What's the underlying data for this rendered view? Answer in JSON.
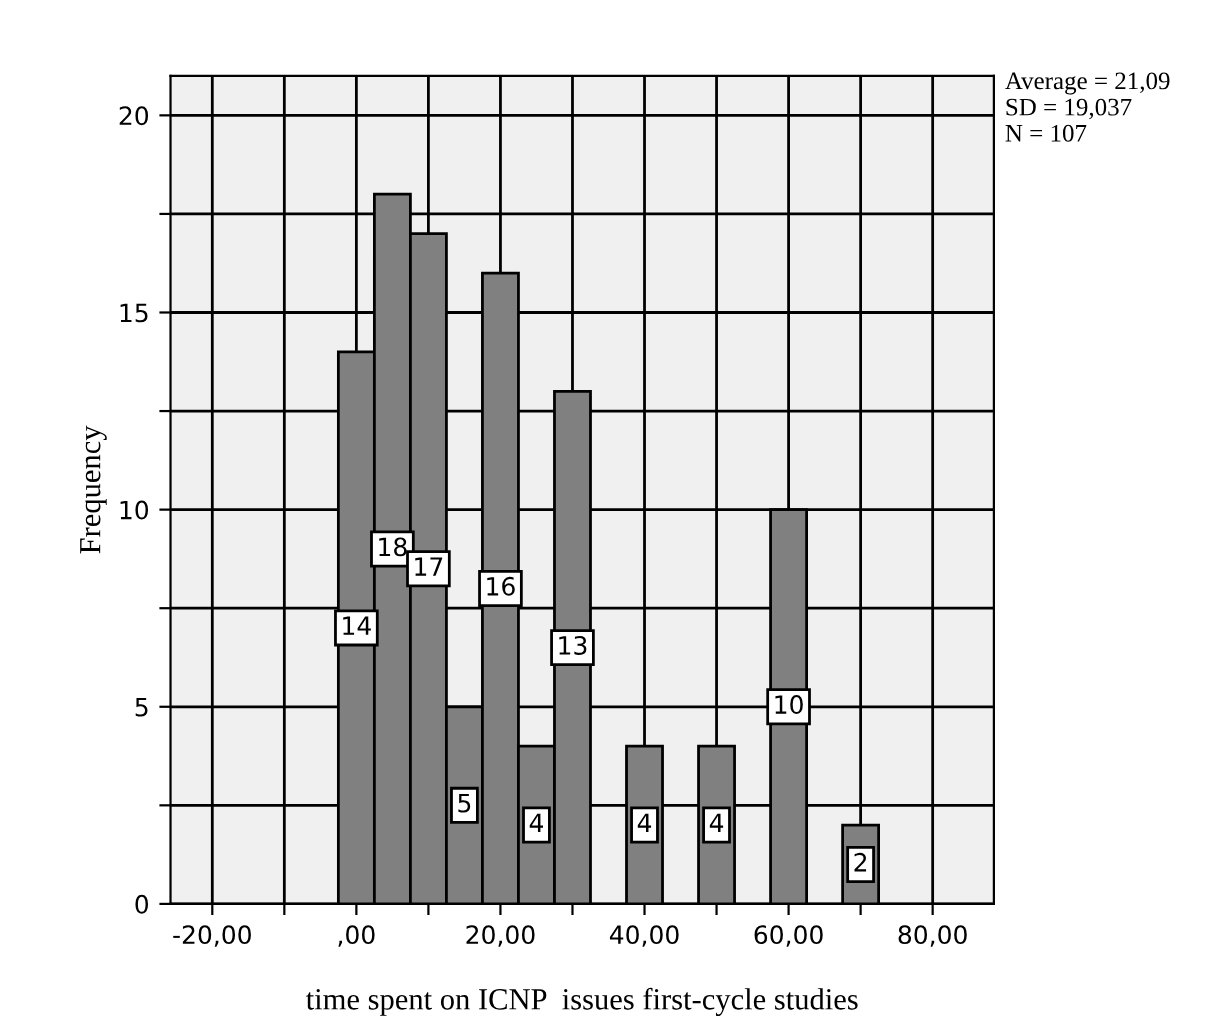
{
  "chart_data": {
    "type": "histogram",
    "xlabel": "time spent on ICNP  issues first-cycle studies",
    "ylabel": "Frequency",
    "bins": [
      -2.5,
      2.5,
      7.5,
      12.5,
      17.5,
      22.5,
      27.5,
      32.5,
      37.5,
      42.5,
      47.5,
      52.5,
      57.5,
      62.5,
      67.5,
      72.5
    ],
    "values": [
      14,
      18,
      17,
      5,
      16,
      4,
      13,
      0,
      4,
      0,
      4,
      0,
      10,
      0,
      2
    ],
    "value_labels": [
      "14",
      "18",
      "17",
      "5",
      "16",
      "4",
      "13",
      null,
      "4",
      null,
      "4",
      null,
      "10",
      null,
      "2"
    ],
    "color": "#808080",
    "xlim": [
      -25.8,
      88.5
    ],
    "xticks": [
      {
        "value": -20,
        "label": "-20,00"
      },
      {
        "value": -10,
        "label": null
      },
      {
        "value": 0,
        "label": ",00"
      },
      {
        "value": 10,
        "label": null
      },
      {
        "value": 20,
        "label": "20,00"
      },
      {
        "value": 30,
        "label": null
      },
      {
        "value": 40,
        "label": "40,00"
      },
      {
        "value": 50,
        "label": null
      },
      {
        "value": 60,
        "label": "60,00"
      },
      {
        "value": 70,
        "label": null
      },
      {
        "value": 80,
        "label": "80,00"
      }
    ],
    "ylim": [
      0,
      21
    ],
    "yticks": [
      0,
      {
        "value": 2.5,
        "label": null
      },
      5,
      {
        "value": 7.5,
        "label": null
      },
      10,
      {
        "value": 12.5,
        "label": null
      },
      15,
      {
        "value": 17.5,
        "label": null
      },
      20
    ],
    "grid": true,
    "annotations": [
      "Average = 21,09\nSD = 19,037\nN = 107"
    ]
  }
}
